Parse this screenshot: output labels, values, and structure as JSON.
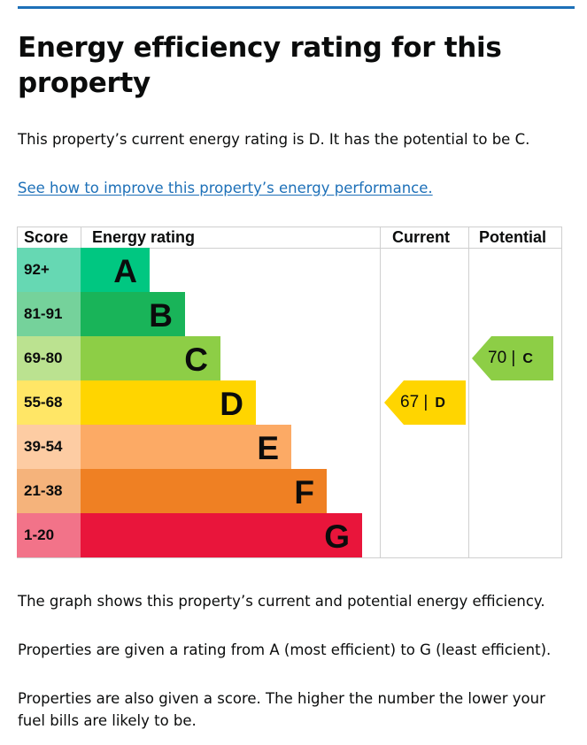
{
  "page": {
    "title": "Energy efficiency rating for this property",
    "summary": "This property’s current energy rating is D. It has the potential to be C.",
    "improve_link": "See how to improve this property’s energy performance.",
    "footer": [
      "The graph shows this property’s current and potential energy efficiency.",
      "Properties are given a rating from A (most efficient) to G (least efficient).",
      "Properties are also given a score. The higher the number the lower your fuel bills are likely to be."
    ]
  },
  "chart": {
    "headers": {
      "score": "Score",
      "rating": "Energy rating",
      "current": "Current",
      "potential": "Potential"
    },
    "bands": [
      {
        "score": "92+",
        "letter": "A",
        "color": "#00c781",
        "score_bg": "#66d8b3"
      },
      {
        "score": "81-91",
        "letter": "B",
        "color": "#19b459",
        "score_bg": "#75d29b"
      },
      {
        "score": "69-80",
        "letter": "C",
        "color": "#8dce46",
        "score_bg": "#bbe290"
      },
      {
        "score": "55-68",
        "letter": "D",
        "color": "#ffd500",
        "score_bg": "#ffe666"
      },
      {
        "score": "39-54",
        "letter": "E",
        "color": "#fcaa65",
        "score_bg": "#fdcca3"
      },
      {
        "score": "21-38",
        "letter": "F",
        "color": "#ef8023",
        "score_bg": "#f5b37b"
      },
      {
        "score": "1-20",
        "letter": "G",
        "color": "#e9153b",
        "score_bg": "#f27389"
      }
    ],
    "current": {
      "score": "67 |",
      "letter": "D",
      "band_index": 3,
      "color": "#ffd500"
    },
    "potential": {
      "score": "70 |",
      "letter": "C",
      "band_index": 2,
      "color": "#8dce46"
    }
  }
}
